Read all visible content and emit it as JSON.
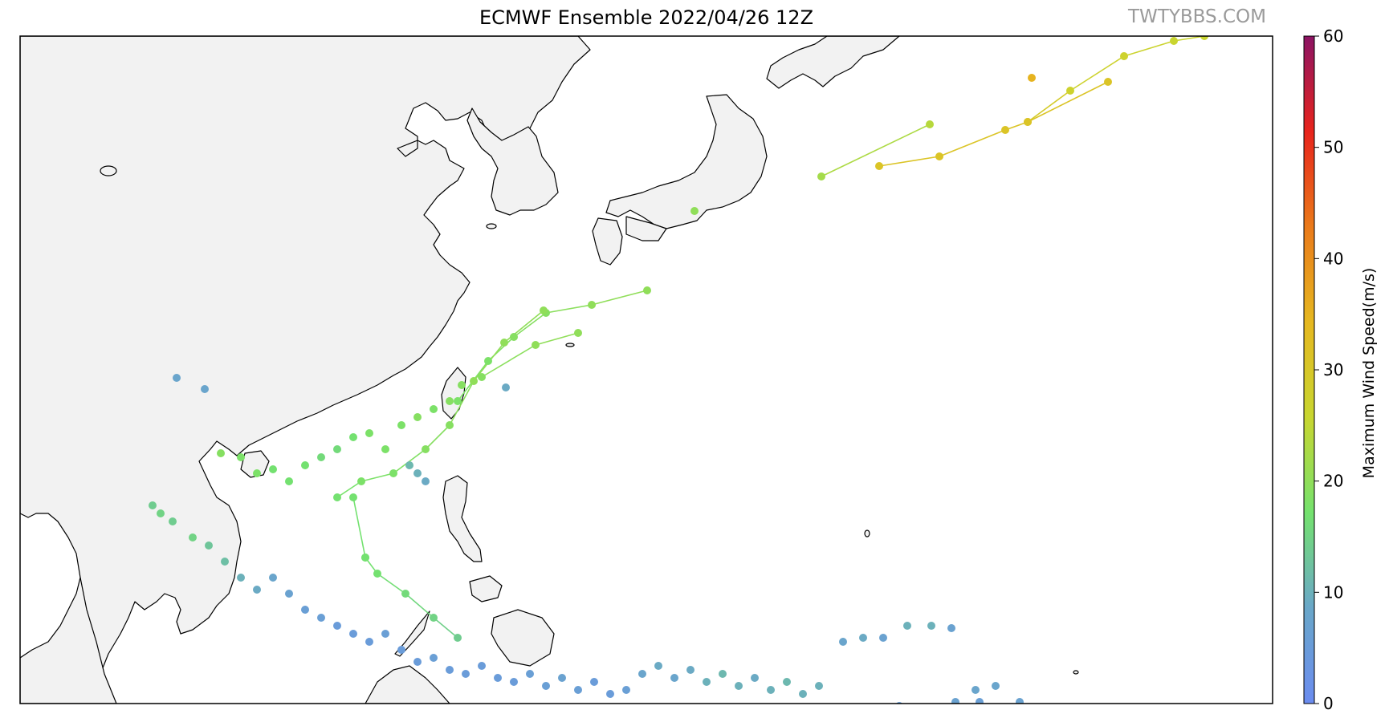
{
  "title": "ECMWF Ensemble 2022/04/26 12Z",
  "watermark": "TWTYBBS.COM",
  "colorbar": {
    "label": "Maximum Wind Speed(m/s)",
    "min": 0,
    "max": 60,
    "ticks": [
      "0",
      "10",
      "20",
      "30",
      "40",
      "50",
      "60"
    ],
    "stops": [
      "#6b8cf0",
      "#6aa7c9",
      "#74e26e",
      "#c8d630",
      "#e6b820",
      "#ea7a1a",
      "#e8241c",
      "#8c1464"
    ]
  },
  "colors": {
    "land": "#f2f2f2",
    "coast": "#000000",
    "ocean": "#ffffff"
  },
  "chart_data": {
    "type": "scatter",
    "title": "ECMWF Ensemble 2022/04/26 12Z",
    "clabel": "Maximum Wind Speed(m/s)",
    "clim": [
      0,
      60
    ],
    "tracks": [
      [
        [
          1023,
          220,
          22
        ],
        [
          1158,
          155,
          24
        ]
      ],
      [
        [
          1095,
          207,
          31
        ],
        [
          1170,
          195,
          31
        ],
        [
          1252,
          162,
          31
        ],
        [
          1280,
          152,
          31
        ],
        [
          1380,
          102,
          31
        ]
      ],
      [
        [
          1280,
          152,
          31
        ],
        [
          1333,
          113,
          27
        ],
        [
          1400,
          70,
          27
        ],
        [
          1462,
          51,
          26
        ],
        [
          1500,
          45,
          26
        ]
      ],
      [
        [
          806,
          362,
          20
        ],
        [
          737,
          380,
          20
        ],
        [
          680,
          390,
          19
        ],
        [
          640,
          420,
          19
        ],
        [
          608,
          450,
          18
        ],
        [
          570,
          500,
          18
        ]
      ],
      [
        [
          720,
          415,
          20
        ],
        [
          667,
          430,
          20
        ],
        [
          600,
          470,
          19
        ]
      ],
      [
        [
          677,
          387,
          20
        ],
        [
          628,
          427,
          20
        ],
        [
          590,
          475,
          20
        ],
        [
          560,
          530,
          19
        ],
        [
          530,
          560,
          19
        ],
        [
          490,
          590,
          18
        ],
        [
          450,
          600,
          18
        ],
        [
          420,
          620,
          17
        ]
      ],
      [
        [
          455,
          695,
          17
        ],
        [
          470,
          715,
          17
        ],
        [
          505,
          740,
          16
        ],
        [
          540,
          770,
          15
        ],
        [
          570,
          795,
          14
        ]
      ],
      [
        [
          440,
          620,
          17
        ],
        [
          455,
          695,
          17
        ]
      ]
    ],
    "dots": [
      [
        1285,
        97,
        35
      ],
      [
        865,
        263,
        20
      ],
      [
        220,
        471,
        8
      ],
      [
        255,
        485,
        8
      ],
      [
        630,
        483,
        9
      ],
      [
        275,
        565,
        19
      ],
      [
        300,
        570,
        18
      ],
      [
        320,
        590,
        18
      ],
      [
        340,
        585,
        17
      ],
      [
        360,
        600,
        17
      ],
      [
        380,
        580,
        17
      ],
      [
        400,
        570,
        16
      ],
      [
        420,
        560,
        16
      ],
      [
        440,
        545,
        17
      ],
      [
        460,
        540,
        18
      ],
      [
        480,
        560,
        18
      ],
      [
        500,
        530,
        18
      ],
      [
        520,
        520,
        19
      ],
      [
        540,
        510,
        18
      ],
      [
        560,
        500,
        19
      ],
      [
        575,
        480,
        19
      ],
      [
        530,
        600,
        9
      ],
      [
        520,
        590,
        10
      ],
      [
        510,
        580,
        11
      ],
      [
        190,
        630,
        14
      ],
      [
        200,
        640,
        15
      ],
      [
        215,
        650,
        14
      ],
      [
        240,
        670,
        15
      ],
      [
        260,
        680,
        13
      ],
      [
        280,
        700,
        12
      ],
      [
        300,
        720,
        10
      ],
      [
        320,
        735,
        9
      ],
      [
        340,
        720,
        8
      ],
      [
        360,
        740,
        7
      ],
      [
        380,
        760,
        6
      ],
      [
        400,
        770,
        6
      ],
      [
        420,
        780,
        5
      ],
      [
        440,
        790,
        5
      ],
      [
        460,
        800,
        5
      ],
      [
        480,
        790,
        6
      ],
      [
        500,
        810,
        5
      ],
      [
        520,
        825,
        5
      ],
      [
        540,
        820,
        6
      ],
      [
        560,
        835,
        5
      ],
      [
        580,
        840,
        5
      ],
      [
        600,
        830,
        5
      ],
      [
        620,
        845,
        5
      ],
      [
        640,
        850,
        5
      ],
      [
        660,
        840,
        6
      ],
      [
        680,
        855,
        6
      ],
      [
        700,
        845,
        7
      ],
      [
        720,
        860,
        6
      ],
      [
        740,
        850,
        5
      ],
      [
        760,
        865,
        5
      ],
      [
        780,
        860,
        6
      ],
      [
        800,
        840,
        8
      ],
      [
        820,
        830,
        9
      ],
      [
        840,
        845,
        8
      ],
      [
        860,
        835,
        9
      ],
      [
        880,
        850,
        10
      ],
      [
        900,
        840,
        11
      ],
      [
        920,
        855,
        10
      ],
      [
        940,
        845,
        9
      ],
      [
        960,
        860,
        10
      ],
      [
        980,
        850,
        11
      ],
      [
        1000,
        865,
        10
      ],
      [
        1020,
        855,
        10
      ],
      [
        1050,
        800,
        8
      ],
      [
        1075,
        795,
        9
      ],
      [
        1100,
        795,
        7
      ],
      [
        1130,
        780,
        10
      ],
      [
        1160,
        780,
        10
      ],
      [
        1185,
        783,
        7
      ],
      [
        1215,
        860,
        8
      ],
      [
        1240,
        855,
        8
      ],
      [
        1270,
        875,
        7
      ],
      [
        1120,
        880,
        6
      ],
      [
        1190,
        875,
        7
      ],
      [
        1220,
        875,
        6
      ]
    ]
  }
}
